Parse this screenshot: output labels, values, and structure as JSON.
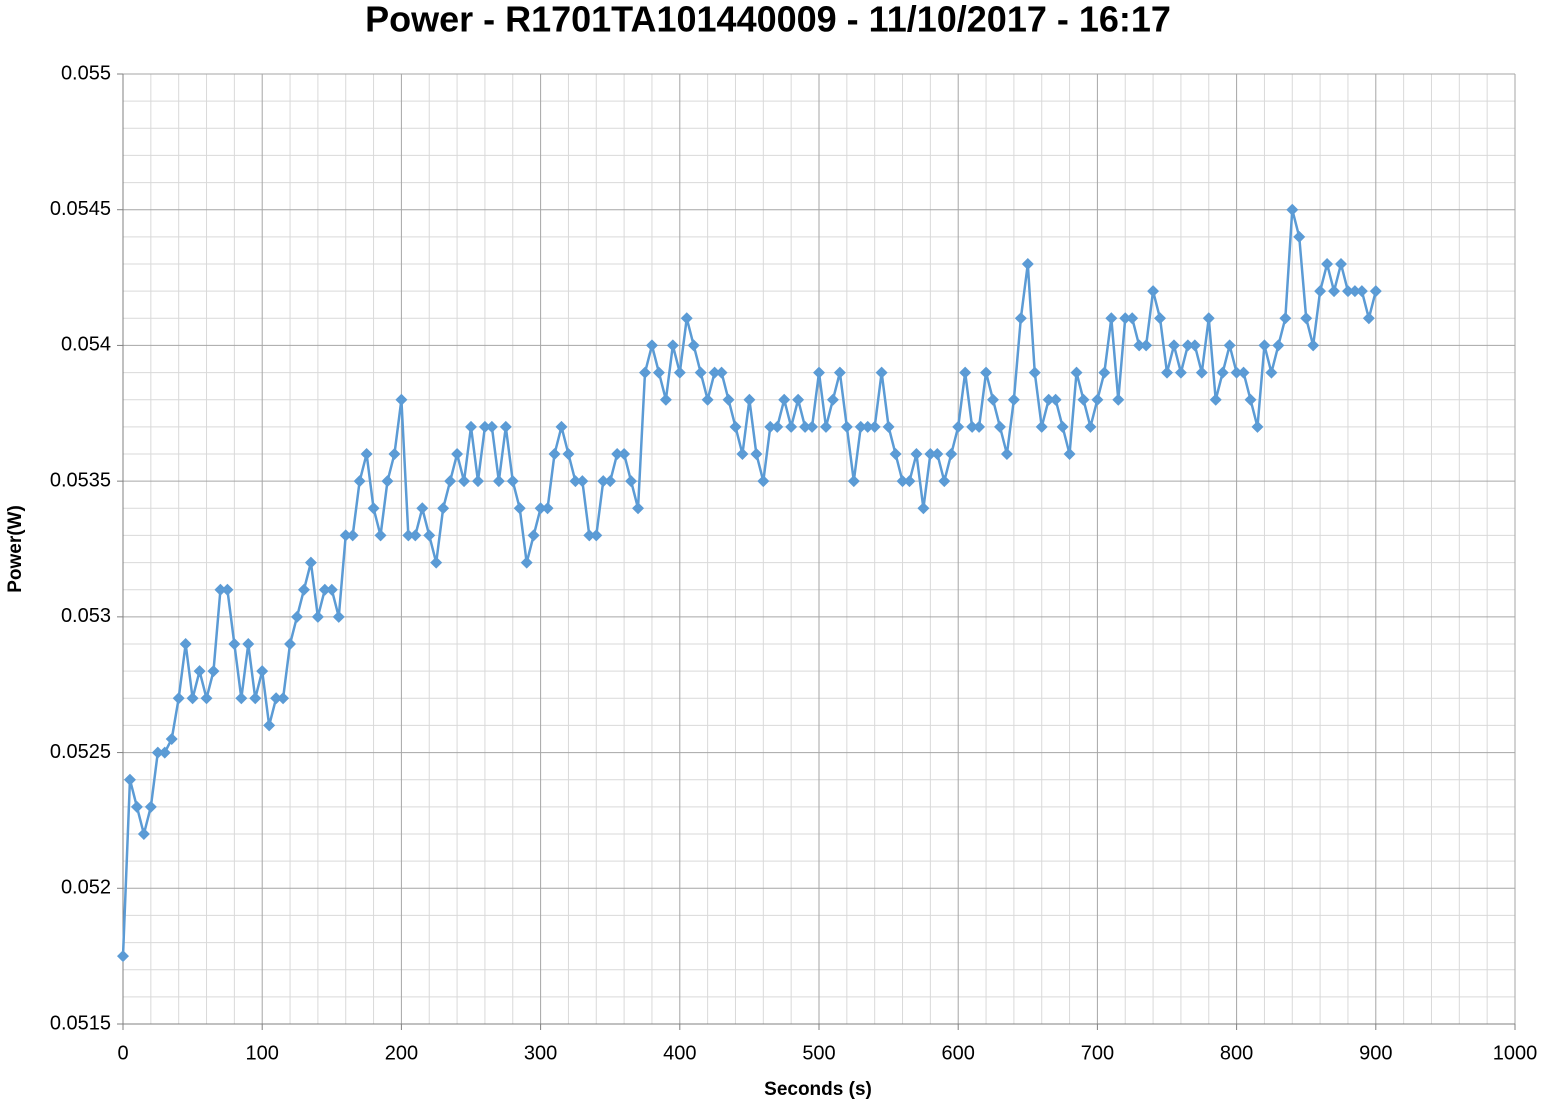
{
  "chart_data": {
    "type": "line",
    "title": "Power - R1701TA101440009 - 11/10/2017 - 16:17",
    "x_label": "Seconds (s)",
    "y_label": "Power(W)",
    "xlim": [
      0,
      1000
    ],
    "xticks": [
      0,
      100,
      200,
      300,
      400,
      500,
      600,
      700,
      800,
      900,
      1000
    ],
    "ylim": [
      0.0515,
      0.055
    ],
    "yticks": [
      0.0515,
      0.052,
      0.0525,
      0.053,
      0.0535,
      0.054,
      0.0545,
      0.055
    ],
    "grid": true,
    "marker": "diamond",
    "x": [
      0,
      5,
      10,
      15,
      20,
      25,
      30,
      35,
      40,
      45,
      50,
      55,
      60,
      65,
      70,
      75,
      80,
      85,
      90,
      95,
      100,
      105,
      110,
      115,
      120,
      125,
      130,
      135,
      140,
      145,
      150,
      155,
      160,
      165,
      170,
      175,
      180,
      185,
      190,
      195,
      200,
      205,
      210,
      215,
      220,
      225,
      230,
      235,
      240,
      245,
      250,
      255,
      260,
      265,
      270,
      275,
      280,
      285,
      290,
      295,
      300,
      305,
      310,
      315,
      320,
      325,
      330,
      335,
      340,
      345,
      350,
      355,
      360,
      365,
      370,
      375,
      380,
      385,
      390,
      395,
      400,
      405,
      410,
      415,
      420,
      425,
      430,
      435,
      440,
      445,
      450,
      455,
      460,
      465,
      470,
      475,
      480,
      485,
      490,
      495,
      500,
      505,
      510,
      515,
      520,
      525,
      530,
      535,
      540,
      545,
      550,
      555,
      560,
      565,
      570,
      575,
      580,
      585,
      590,
      595,
      600,
      605,
      610,
      615,
      620,
      625,
      630,
      635,
      640,
      645,
      650,
      655,
      660,
      665,
      670,
      675,
      680,
      685,
      690,
      695,
      700,
      705,
      710,
      715,
      720,
      725,
      730,
      735,
      740,
      745,
      750,
      755,
      760,
      765,
      770,
      775,
      780,
      785,
      790,
      795,
      800,
      805,
      810,
      815,
      820,
      825,
      830,
      835,
      840,
      845,
      850,
      855,
      860,
      865,
      870,
      875,
      880,
      885,
      890,
      895,
      900
    ],
    "series": [
      {
        "name": "Power",
        "color": "#5b9bd5",
        "values": [
          0.05175,
          0.0524,
          0.0523,
          0.0522,
          0.0523,
          0.0525,
          0.0525,
          0.05255,
          0.0527,
          0.0529,
          0.0527,
          0.0528,
          0.0527,
          0.0528,
          0.0531,
          0.0531,
          0.0529,
          0.0527,
          0.0529,
          0.0527,
          0.0528,
          0.0526,
          0.0527,
          0.0527,
          0.0529,
          0.053,
          0.0531,
          0.0532,
          0.053,
          0.0531,
          0.0531,
          0.053,
          0.0533,
          0.0533,
          0.0535,
          0.0536,
          0.0534,
          0.0533,
          0.0535,
          0.0536,
          0.0538,
          0.0533,
          0.0533,
          0.0534,
          0.0533,
          0.0532,
          0.0534,
          0.0535,
          0.0536,
          0.0535,
          0.0537,
          0.0535,
          0.0537,
          0.0537,
          0.0535,
          0.0537,
          0.0535,
          0.0534,
          0.0532,
          0.0533,
          0.0534,
          0.0534,
          0.0536,
          0.0537,
          0.0536,
          0.0535,
          0.0535,
          0.0533,
          0.0533,
          0.0535,
          0.0535,
          0.0536,
          0.0536,
          0.0535,
          0.0534,
          0.0539,
          0.054,
          0.0539,
          0.0538,
          0.054,
          0.0539,
          0.0541,
          0.054,
          0.0539,
          0.0538,
          0.0539,
          0.0539,
          0.0538,
          0.0537,
          0.0536,
          0.0538,
          0.0536,
          0.0535,
          0.0537,
          0.0537,
          0.0538,
          0.0537,
          0.0538,
          0.0537,
          0.0537,
          0.0539,
          0.0537,
          0.0538,
          0.0539,
          0.0537,
          0.0535,
          0.0537,
          0.0537,
          0.0537,
          0.0539,
          0.0537,
          0.0536,
          0.0535,
          0.0535,
          0.0536,
          0.0534,
          0.0536,
          0.0536,
          0.0535,
          0.0536,
          0.0537,
          0.0539,
          0.0537,
          0.0537,
          0.0539,
          0.0538,
          0.0537,
          0.0536,
          0.0538,
          0.0541,
          0.0543,
          0.0539,
          0.0537,
          0.0538,
          0.0538,
          0.0537,
          0.0536,
          0.0539,
          0.0538,
          0.0537,
          0.0538,
          0.0539,
          0.0541,
          0.0538,
          0.0541,
          0.0541,
          0.054,
          0.054,
          0.0542,
          0.0541,
          0.0539,
          0.054,
          0.0539,
          0.054,
          0.054,
          0.0539,
          0.0541,
          0.0538,
          0.0539,
          0.054,
          0.0539,
          0.0539,
          0.0538,
          0.0537,
          0.054,
          0.0539,
          0.054,
          0.0541,
          0.0545,
          0.0544,
          0.0541,
          0.054,
          0.0542,
          0.0543,
          0.0542,
          0.0543,
          0.0542,
          0.0542,
          0.0542,
          0.0541,
          0.0542
        ]
      }
    ]
  }
}
